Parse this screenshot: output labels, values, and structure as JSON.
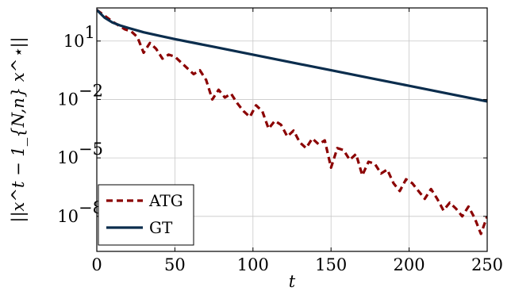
{
  "chart_data": {
    "type": "line",
    "xlabel": "t",
    "ylabel": "||x^t − 1_{N,n} x^⋆||",
    "xlim": [
      0,
      250
    ],
    "ylim_log10": [
      -9.8,
      2.7
    ],
    "yscale": "log",
    "x_ticks": [
      0,
      50,
      100,
      150,
      200,
      250
    ],
    "y_ticks": [
      {
        "exp": 1,
        "label_base": "10",
        "label_exp": "1"
      },
      {
        "exp": -2,
        "label_base": "10",
        "label_exp": "−2"
      },
      {
        "exp": -5,
        "label_base": "10",
        "label_exp": "−5"
      },
      {
        "exp": -8,
        "label_base": "10",
        "label_exp": "−8"
      }
    ],
    "grid": true,
    "legend_position": "bottom-left",
    "series": [
      {
        "name": "ATG",
        "color": "#8b0000",
        "style": "dashed",
        "x": [
          0,
          5,
          10,
          14,
          18,
          22,
          26,
          30,
          34,
          38,
          42,
          46,
          50,
          54,
          58,
          62,
          66,
          70,
          74,
          78,
          82,
          86,
          90,
          94,
          98,
          102,
          106,
          110,
          114,
          118,
          122,
          126,
          130,
          134,
          138,
          142,
          146,
          150,
          154,
          158,
          162,
          166,
          170,
          174,
          178,
          182,
          186,
          190,
          194,
          198,
          202,
          206,
          210,
          214,
          218,
          222,
          226,
          230,
          234,
          238,
          242,
          246,
          250
        ],
        "log10_y": [
          2.6,
          2.3,
          2.0,
          1.8,
          1.6,
          1.5,
          1.2,
          0.4,
          0.9,
          0.6,
          0.1,
          0.3,
          0.2,
          -0.1,
          -0.4,
          -0.7,
          -0.5,
          -1.0,
          -2.0,
          -1.5,
          -1.9,
          -1.7,
          -2.2,
          -2.6,
          -2.9,
          -2.3,
          -2.6,
          -3.5,
          -3.1,
          -3.3,
          -3.9,
          -3.6,
          -4.2,
          -4.5,
          -4.0,
          -4.3,
          -4.1,
          -5.5,
          -4.5,
          -4.6,
          -5.1,
          -4.8,
          -5.9,
          -5.2,
          -5.3,
          -5.8,
          -5.6,
          -6.3,
          -6.7,
          -6.1,
          -6.3,
          -6.7,
          -7.1,
          -6.6,
          -7.1,
          -7.7,
          -7.3,
          -7.6,
          -8.0,
          -7.5,
          -8.1,
          -8.9,
          -8.0
        ]
      },
      {
        "name": "GT",
        "color": "#0b2d4d",
        "style": "solid",
        "x": [
          0,
          5,
          10,
          15,
          20,
          30,
          40,
          50,
          75,
          100,
          125,
          150,
          175,
          200,
          225,
          250
        ],
        "log10_y": [
          2.6,
          2.2,
          1.95,
          1.8,
          1.68,
          1.45,
          1.27,
          1.1,
          0.7,
          0.3,
          -0.1,
          -0.5,
          -0.9,
          -1.3,
          -1.7,
          -2.1
        ]
      }
    ]
  }
}
